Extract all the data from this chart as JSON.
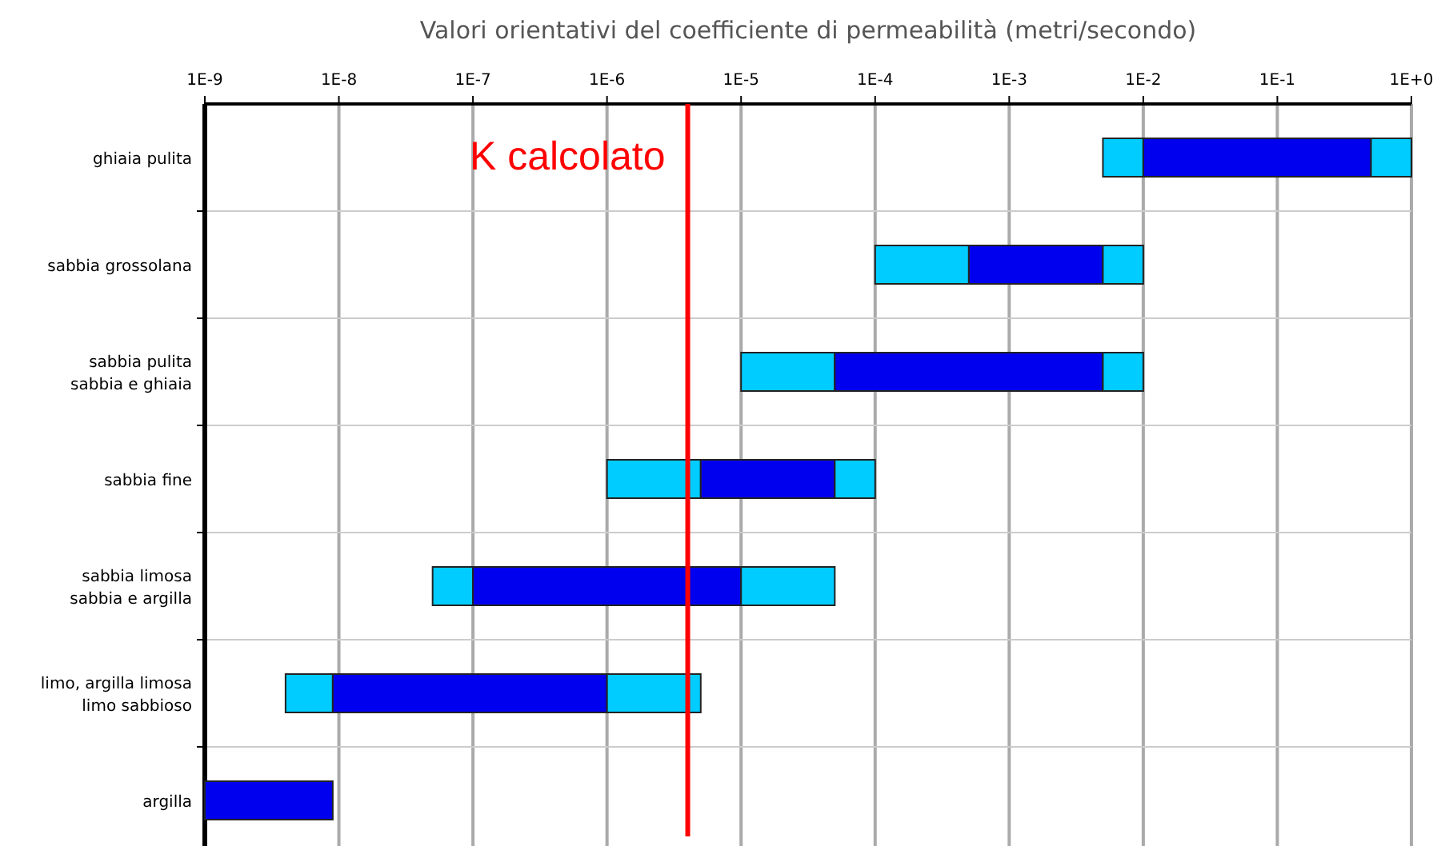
{
  "chart_data": {
    "type": "bar",
    "orientation": "horizontal",
    "title": "Valori orientativi del coefficiente di permeabilità (metri/secondo)",
    "categories": [
      "ghiaia pulita",
      "sabbia grossolana",
      "sabbia pulita\nsabbia e ghiaia",
      "sabbia fine",
      "sabbia limosa\nsabbia e argilla",
      "limo, argilla limosa\nlimo sabbioso",
      "argilla"
    ],
    "series": [
      {
        "color": "#00ccff",
        "base": [
          0.005,
          0.0001,
          1e-05,
          1e-06,
          5e-08,
          4e-09,
          null
        ],
        "values": [
          0.005,
          0.0004,
          4e-05,
          4e-06,
          5e-08,
          5e-09,
          null
        ]
      },
      {
        "color": "#0000ee",
        "base": [
          0.01,
          0.0005,
          5e-05,
          5e-06,
          1e-07,
          9e-09,
          1e-09
        ],
        "values": [
          0.49,
          0.0045,
          0.00495,
          4.5e-05,
          9.9e-06,
          9.91e-07,
          8e-09
        ]
      },
      {
        "color": "#00ccff",
        "base": [
          0.5,
          0.005,
          0.005,
          5e-05,
          1e-05,
          1e-06,
          null
        ],
        "values": [
          0.5,
          0.005,
          0.005,
          5e-05,
          4e-05,
          4e-06,
          null
        ]
      }
    ],
    "log": "x",
    "xlim": [
      1e-09,
      1
    ],
    "xticks": [
      {
        "value": 1e-09,
        "label": "1E-9"
      },
      {
        "value": 1e-08,
        "label": "1E-8"
      },
      {
        "value": 1e-07,
        "label": "1E-7"
      },
      {
        "value": 1e-06,
        "label": "1E-6"
      },
      {
        "value": 1e-05,
        "label": "1E-5"
      },
      {
        "value": 0.0001,
        "label": "1E-4"
      },
      {
        "value": 0.001,
        "label": "1E-3"
      },
      {
        "value": 0.01,
        "label": "1E-2"
      },
      {
        "value": 0.1,
        "label": "1E-1"
      },
      {
        "value": 1,
        "label": "1E+0"
      }
    ],
    "grid": true,
    "ref_lines": [
      {
        "axis": "x",
        "value": 4e-06,
        "label": "K calcolato",
        "color": "#ff0000"
      }
    ]
  }
}
